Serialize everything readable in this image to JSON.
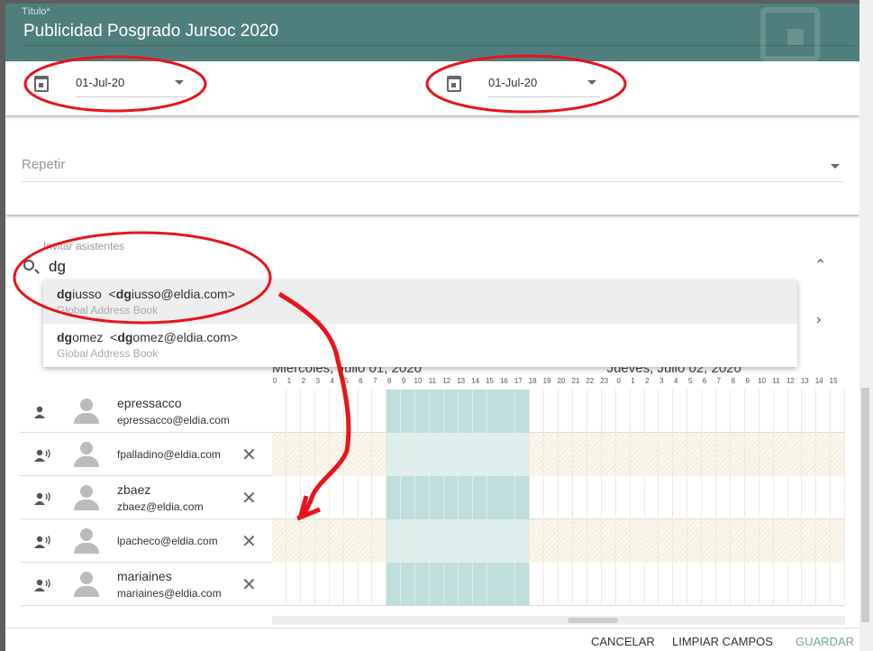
{
  "header": {
    "title_label": "Título*",
    "title": "Publicidad Posgrado Jursoc 2020"
  },
  "dates": {
    "start": "01-Jul-20",
    "end": "01-Jul-20"
  },
  "repeat": {
    "placeholder": "Repetir"
  },
  "invite": {
    "label": "Invitar asistentes",
    "query": "dg",
    "suggestions": [
      {
        "match": "dg",
        "rest": "iusso",
        "email_match": "dg",
        "email_rest": "iusso@eldia.com",
        "source": "Global Address Book",
        "highlighted": true
      },
      {
        "match": "dg",
        "rest": "omez",
        "email_match": "dg",
        "email_rest": "omez@eldia.com",
        "source": "Global Address Book",
        "highlighted": false
      }
    ]
  },
  "schedule": {
    "day1": "Miercoles, Julio 01, 2020",
    "day2": "Jueves, Julio 02, 2020",
    "hours_day1": [
      "0",
      "1",
      "2",
      "3",
      "4",
      "5",
      "6",
      "7",
      "8",
      "9",
      "10",
      "11",
      "12",
      "13",
      "14",
      "15",
      "16",
      "17",
      "18",
      "19",
      "20",
      "21",
      "22",
      "23"
    ],
    "hours_day2": [
      "0",
      "1",
      "2",
      "3",
      "4",
      "5",
      "6",
      "7",
      "8",
      "9",
      "10",
      "11",
      "12",
      "13",
      "14",
      "15"
    ],
    "busy_hours_day1": [
      8,
      17
    ]
  },
  "attendees": [
    {
      "name": "epressacco",
      "email": "epressacco@eldia.com",
      "role": "organizer",
      "status": "busy",
      "removable": false
    },
    {
      "name": "",
      "email": "fpalladino@eldia.com",
      "role": "attendee",
      "status": "tentative",
      "removable": true
    },
    {
      "name": "zbaez",
      "email": "zbaez@eldia.com",
      "role": "attendee",
      "status": "busy",
      "removable": true
    },
    {
      "name": "",
      "email": "lpacheco@eldia.com",
      "role": "attendee",
      "status": "tentative",
      "removable": true
    },
    {
      "name": "mariaines",
      "email": "mariaines@eldia.com",
      "role": "attendee",
      "status": "busy",
      "removable": true
    }
  ],
  "footer": {
    "cancel": "CANCELAR",
    "clear": "LIMPIAR CAMPOS",
    "save": "GUARDAR"
  },
  "colors": {
    "header": "#4f7f7c",
    "busy": "#c0dfdc",
    "save": "#6fa8a3",
    "annotation": "#e8141b"
  }
}
